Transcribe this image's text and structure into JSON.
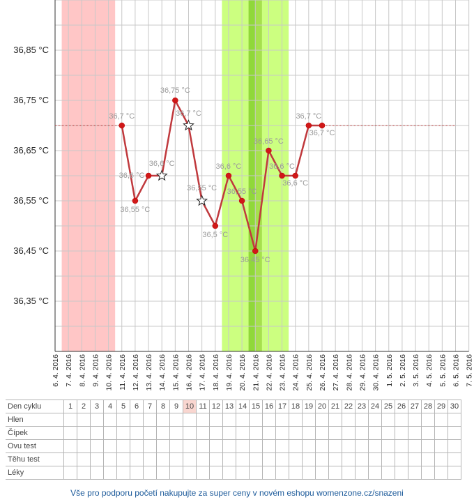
{
  "chart_data": {
    "type": "line",
    "x_dates": [
      "6. 4. 2016",
      "7. 4. 2016",
      "8. 4. 2016",
      "9. 4. 2016",
      "10. 4. 2016",
      "11. 4. 2016",
      "12. 4. 2016",
      "13. 4. 2016",
      "14. 4. 2016",
      "15. 4. 2016",
      "16. 4. 2016",
      "17. 4. 2016",
      "18. 4. 2016",
      "19. 4. 2016",
      "20. 4. 2016",
      "21. 4. 2016",
      "22. 4. 2016",
      "23. 4. 2016",
      "24. 4. 2016",
      "25. 4. 2016",
      "26. 4. 2016",
      "27. 4. 2016",
      "28. 4. 2016",
      "29. 4. 2016",
      "30. 4. 2016",
      "1. 5. 2016",
      "2. 5. 2016",
      "3. 5. 2016",
      "4. 5. 2016",
      "5. 5. 2016",
      "6. 5. 2016",
      "7. 5. 2016"
    ],
    "y_ticks": [
      {
        "value": 36.85,
        "label": "36,85 °C"
      },
      {
        "value": 36.75,
        "label": "36,75 °C"
      },
      {
        "value": 36.65,
        "label": "36,65 °C"
      },
      {
        "value": 36.55,
        "label": "36,55 °C"
      },
      {
        "value": 36.45,
        "label": "36,45 °C"
      },
      {
        "value": 36.35,
        "label": "36,35 °C"
      }
    ],
    "ylim": [
      36.25,
      36.95
    ],
    "series": [
      {
        "color": "#c0393d",
        "points": [
          {
            "date": "11. 4. 2016",
            "value": 36.7,
            "label": "36,7 °C",
            "marker": "dot"
          },
          {
            "date": "12. 4. 2016",
            "value": 36.55,
            "label": "36,55 °C",
            "marker": "dot"
          },
          {
            "date": "13. 4. 2016",
            "value": 36.6,
            "label": "36,6 °C",
            "marker": "dot"
          },
          {
            "date": "14. 4. 2016",
            "value": 36.6,
            "label": "36,6 °C",
            "marker": "star"
          },
          {
            "date": "15. 4. 2016",
            "value": 36.75,
            "label": "36,75 °C",
            "marker": "dot"
          },
          {
            "date": "16. 4. 2016",
            "value": 36.7,
            "label": "36,7 °C",
            "marker": "star"
          },
          {
            "date": "17. 4. 2016",
            "value": 36.55,
            "label": "36,55 °C",
            "marker": "star"
          },
          {
            "date": "18. 4. 2016",
            "value": 36.5,
            "label": "36,5 °C",
            "marker": "dot"
          },
          {
            "date": "19. 4. 2016",
            "value": 36.6,
            "label": "36,6 °C",
            "marker": "dot"
          },
          {
            "date": "20. 4. 2016",
            "value": 36.55,
            "label": "36,55 °C",
            "marker": "dot"
          },
          {
            "date": "21. 4. 2016",
            "value": 36.45,
            "label": "36,45 °C",
            "marker": "dot"
          },
          {
            "date": "22. 4. 2016",
            "value": 36.65,
            "label": "36,65 °C",
            "marker": "dot"
          },
          {
            "date": "23. 4. 2016",
            "value": 36.6,
            "label": "36,6 °C",
            "marker": "dot"
          },
          {
            "date": "24. 4. 2016",
            "value": 36.6,
            "label": "36,6 °C",
            "marker": "dot"
          },
          {
            "date": "25. 4. 2016",
            "value": 36.7,
            "label": "36,7 °C",
            "marker": "dot"
          },
          {
            "date": "26. 4. 2016",
            "value": 36.7,
            "label": "36,7 °C",
            "marker": "dot"
          }
        ]
      }
    ],
    "reference_lines": [
      {
        "value": 36.7,
        "from": "6. 4. 2016",
        "to": "11. 4. 2016",
        "color": "#b03030",
        "style": "dotted"
      },
      {
        "value": 36.7,
        "from": "26. 4. 2016",
        "to": "6. 5. 2016",
        "color": "#b03030",
        "style": "dotted"
      }
    ],
    "bands": [
      {
        "from": "6. 4. 2016",
        "to": "10. 4. 2016",
        "color": "#ffc6c6",
        "meaning": "menstruation"
      },
      {
        "from": "18. 4. 2016",
        "to": "23. 4. 2016",
        "color": "#ccff80",
        "meaning": "fertile"
      },
      {
        "from": "20. 4. 2016",
        "to": "21. 4. 2016",
        "color": "#a6e04d",
        "meaning": "fertile-peak"
      },
      {
        "from": "20.5. 4. 2016",
        "to": "21. 4. 2016",
        "color": "#90d83a",
        "meaning": "ovulation"
      }
    ],
    "grid": true,
    "title": "",
    "xlabel": "",
    "ylabel": ""
  },
  "table": {
    "rows": [
      "Den cyklu",
      "Hlen",
      "Čípek",
      "Ovu test",
      "Těhu test",
      "Léky"
    ],
    "days": [
      "1",
      "2",
      "3",
      "4",
      "5",
      "6",
      "7",
      "8",
      "9",
      "10",
      "11",
      "12",
      "13",
      "14",
      "15",
      "16",
      "17",
      "18",
      "19",
      "20",
      "21",
      "22",
      "23",
      "24",
      "25",
      "26",
      "27",
      "28",
      "29",
      "30"
    ],
    "today_day": "10",
    "today_color": "#f9d6d0"
  },
  "footer": {
    "text": "Vše pro podporu početí nakupujte za super ceny v novém eshopu womenzone.cz/snazeni"
  }
}
